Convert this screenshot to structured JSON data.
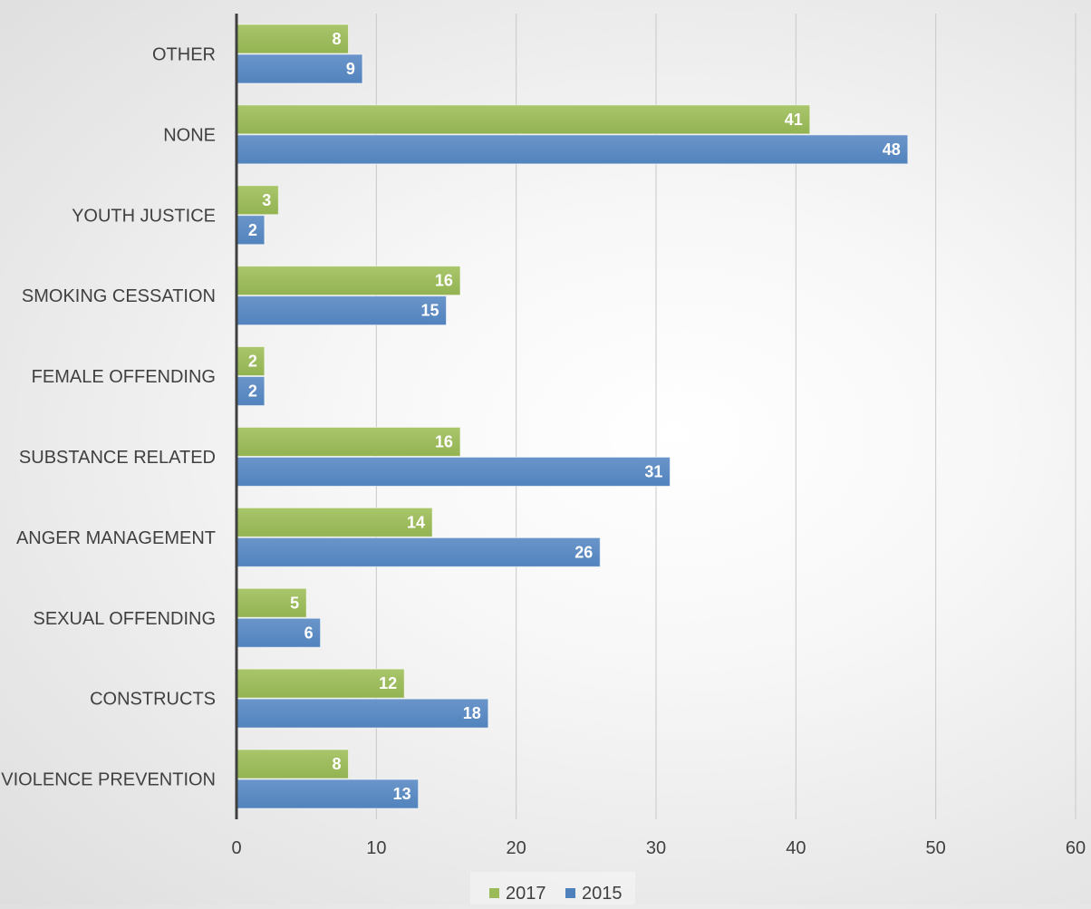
{
  "chart_data": {
    "type": "bar",
    "orientation": "horizontal",
    "categories": [
      "OTHER",
      "NONE",
      "YOUTH JUSTICE",
      "SMOKING CESSATION",
      "FEMALE OFFENDING",
      "SUBSTANCE RELATED",
      "ANGER MANAGEMENT",
      "SEXUAL OFFENDING",
      "CONSTRUCTS",
      "VIOLENCE PREVENTION"
    ],
    "series": [
      {
        "name": "2017",
        "color": "#9bbb59",
        "values": [
          8,
          41,
          3,
          16,
          2,
          16,
          14,
          5,
          12,
          8
        ]
      },
      {
        "name": "2015",
        "color": "#4f81bd",
        "values": [
          9,
          48,
          2,
          15,
          2,
          31,
          26,
          6,
          18,
          13
        ]
      }
    ],
    "xlim": [
      0,
      60
    ],
    "xticks": [
      "0",
      "10",
      "20",
      "30",
      "40",
      "50",
      "60"
    ],
    "title": "",
    "xlabel": "",
    "ylabel": "",
    "grid": "vertical",
    "legend": "bottom",
    "data_labels": "inside-end"
  }
}
